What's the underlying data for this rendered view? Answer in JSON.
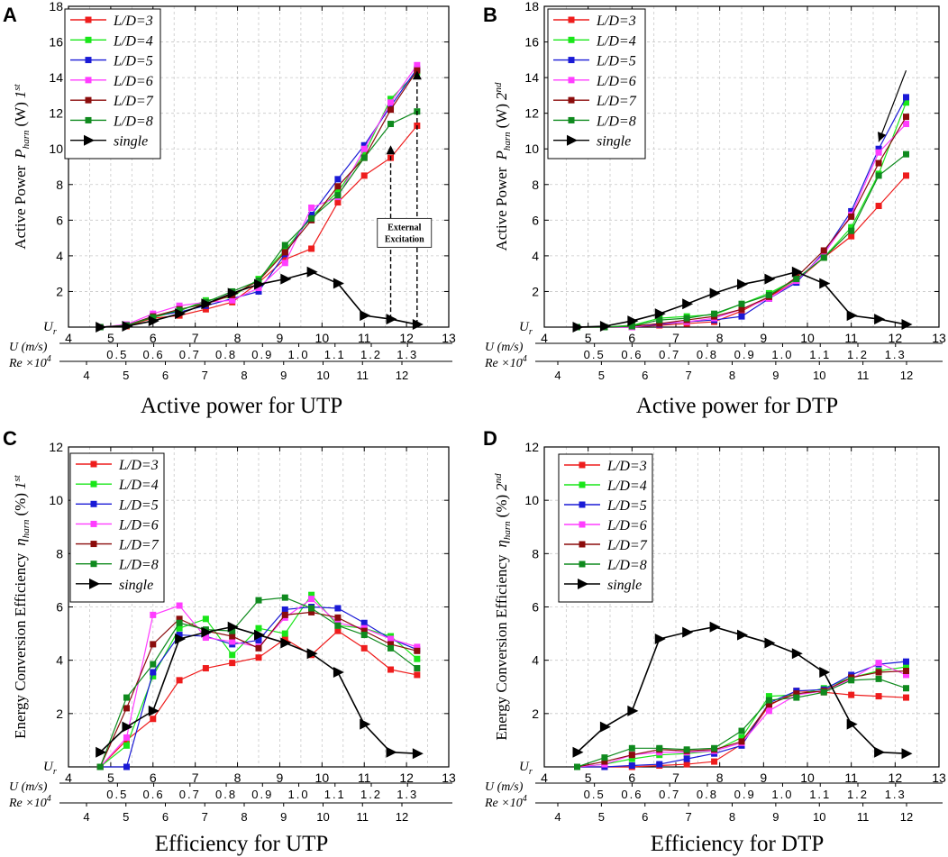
{
  "legend_prefix": "L/D=",
  "colors": {
    "ld3": "#ee1c1c",
    "ld4": "#19e619",
    "ld5": "#1a1ad6",
    "ld6": "#ff3dff",
    "ld7": "#8b0c0c",
    "ld8": "#0f8a1e",
    "single": "#000000",
    "grid": "#c8c8c8"
  },
  "annotation": {
    "line1": "External",
    "line2": "Excitation"
  },
  "chart_data": [
    {
      "panel": "A",
      "type": "line",
      "title": "Active power for UTP",
      "ylabel": "Active Power  P_harn (W) 1st",
      "ylabel_main": "Active Power",
      "ylabel_sym": "P",
      "ylabel_sub": "harn",
      "ylabel_unit": "(W)",
      "ylabel_order": "1",
      "ylabel_sup": "st",
      "ylim": [
        0,
        18
      ],
      "yticks": [
        0,
        2,
        4,
        6,
        8,
        10,
        12,
        14,
        16,
        18
      ],
      "ur_label": "U",
      "ur_sub": "r",
      "u_label": "U (m/s)",
      "u_ticks": [
        4,
        5,
        6,
        7,
        8,
        9,
        10,
        11,
        12,
        13
      ],
      "u_range": [
        4,
        13
      ],
      "re_label": "Re ×10",
      "re_sup": "4",
      "re_upper_ticks": [
        "0.5",
        "0.6",
        "0.7",
        "0.8",
        "0.9",
        "1.0",
        "1.1",
        "1.2",
        "1.3"
      ],
      "re_lower_ticks": [
        "4",
        "5",
        "6",
        "7",
        "8",
        "9",
        "10",
        "11",
        "12"
      ],
      "x": [
        4.75,
        5.375,
        6.0,
        6.625,
        7.25,
        7.875,
        8.5,
        9.125,
        9.75,
        10.375,
        11.0,
        11.625,
        12.25
      ],
      "series": [
        {
          "name": "L/D=3",
          "key": "ld3",
          "values": [
            0.0,
            0.05,
            0.5,
            0.65,
            1.0,
            1.4,
            2.5,
            3.8,
            4.4,
            7.0,
            8.5,
            9.5,
            11.3
          ]
        },
        {
          "name": "L/D=4",
          "key": "ld4",
          "values": [
            0.0,
            0.1,
            0.55,
            0.9,
            1.5,
            1.7,
            2.7,
            4.3,
            6.2,
            7.6,
            9.7,
            12.8,
            14.3
          ]
        },
        {
          "name": "L/D=5",
          "key": "ld5",
          "values": [
            0.0,
            0.1,
            0.6,
            0.85,
            1.2,
            1.6,
            2.0,
            4.1,
            6.3,
            8.3,
            10.2,
            12.4,
            14.5
          ]
        },
        {
          "name": "L/D=6",
          "key": "ld6",
          "values": [
            0.0,
            0.15,
            0.75,
            1.2,
            1.4,
            1.5,
            2.2,
            3.6,
            6.7,
            7.3,
            10.0,
            12.6,
            14.7
          ]
        },
        {
          "name": "L/D=7",
          "key": "ld7",
          "values": [
            0.0,
            0.1,
            0.6,
            1.0,
            1.3,
            1.8,
            2.6,
            4.2,
            6.0,
            7.9,
            9.5,
            12.2,
            14.4
          ]
        },
        {
          "name": "L/D=8",
          "key": "ld8",
          "values": [
            0.0,
            0.1,
            0.55,
            0.95,
            1.4,
            2.0,
            2.6,
            4.6,
            6.1,
            7.4,
            9.5,
            11.4,
            12.1
          ]
        },
        {
          "name": "single",
          "key": "single",
          "values": [
            0.0,
            0.05,
            0.35,
            0.75,
            1.3,
            1.9,
            2.4,
            2.7,
            3.1,
            2.45,
            0.65,
            0.45,
            0.15
          ]
        }
      ],
      "annotation": {
        "text": "External Excitation",
        "arrows": [
          [
            11.625,
            0.45,
            11.625,
            10.2
          ],
          [
            12.25,
            0.15,
            12.25,
            14.4
          ]
        ]
      }
    },
    {
      "panel": "B",
      "type": "line",
      "title": "Active power for DTP",
      "ylabel": "Active Power  P_harn (W) 2nd",
      "ylabel_main": "Active Power",
      "ylabel_sym": "P",
      "ylabel_sub": "harn",
      "ylabel_unit": "(W)",
      "ylabel_order": "2",
      "ylabel_sup": "nd",
      "ylim": [
        0,
        18
      ],
      "yticks": [
        0,
        2,
        4,
        6,
        8,
        10,
        12,
        14,
        16,
        18
      ],
      "ur_label": "U",
      "ur_sub": "r",
      "u_label": "U (m/s)",
      "u_ticks": [
        4,
        5,
        6,
        7,
        8,
        9,
        10,
        11,
        12,
        13
      ],
      "u_range": [
        4,
        13
      ],
      "re_label": "Re ×10",
      "re_sup": "4",
      "re_upper_ticks": [
        "0.5",
        "0.6",
        "0.7",
        "0.8",
        "0.9",
        "1.0",
        "1.1",
        "1.2",
        "1.3"
      ],
      "re_lower_ticks": [
        "4",
        "5",
        "6",
        "7",
        "8",
        "9",
        "10",
        "11",
        "12"
      ],
      "x": [
        4.75,
        5.375,
        6.0,
        6.625,
        7.25,
        7.875,
        8.5,
        9.125,
        9.75,
        10.375,
        11.0,
        11.625,
        12.25
      ],
      "series": [
        {
          "name": "L/D=3",
          "key": "ld3",
          "values": [
            0.0,
            0.0,
            0.0,
            0.1,
            0.2,
            0.3,
            0.9,
            1.7,
            2.6,
            3.9,
            5.1,
            6.8,
            8.5
          ]
        },
        {
          "name": "L/D=4",
          "key": "ld4",
          "values": [
            0.0,
            0.0,
            0.1,
            0.5,
            0.6,
            0.7,
            1.3,
            1.9,
            2.7,
            3.9,
            5.6,
            8.6,
            12.6
          ]
        },
        {
          "name": "L/D=5",
          "key": "ld5",
          "values": [
            0.0,
            0.0,
            0.0,
            0.15,
            0.3,
            0.4,
            0.6,
            1.6,
            2.5,
            4.2,
            6.5,
            10.0,
            12.9
          ]
        },
        {
          "name": "L/D=6",
          "key": "ld6",
          "values": [
            0.0,
            0.0,
            0.0,
            0.2,
            0.3,
            0.5,
            1.0,
            1.6,
            2.6,
            4.1,
            6.3,
            9.8,
            11.4
          ]
        },
        {
          "name": "L/D=7",
          "key": "ld7",
          "values": [
            0.0,
            0.0,
            0.05,
            0.2,
            0.4,
            0.6,
            1.0,
            1.7,
            2.8,
            4.3,
            6.2,
            9.2,
            11.8
          ]
        },
        {
          "name": "L/D=8",
          "key": "ld8",
          "values": [
            0.0,
            0.0,
            0.05,
            0.4,
            0.5,
            0.75,
            1.3,
            1.8,
            2.7,
            3.9,
            5.4,
            8.5,
            9.7
          ]
        },
        {
          "name": "single",
          "key": "single",
          "values": [
            0.0,
            0.05,
            0.35,
            0.75,
            1.3,
            1.9,
            2.4,
            2.7,
            3.1,
            2.45,
            0.65,
            0.45,
            0.15
          ]
        }
      ],
      "annotation_arrow": [
        11.625,
        10.4,
        12.25,
        14.4
      ]
    },
    {
      "panel": "C",
      "type": "line",
      "title": "Efficiency for UTP",
      "ylabel": "Energy Conversion Efficiency  η_harn (%) 1st",
      "ylabel_main": "Energy Conversion Efficiency",
      "ylabel_sym": "η",
      "ylabel_sub": "harn",
      "ylabel_unit": "(%)",
      "ylabel_order": "1",
      "ylabel_sup": "st",
      "ylim": [
        0,
        12
      ],
      "yticks": [
        0,
        2,
        4,
        6,
        8,
        10,
        12
      ],
      "ur_label": "U",
      "ur_sub": "r",
      "u_label": "U (m/s)",
      "u_ticks": [
        4,
        5,
        6,
        7,
        8,
        9,
        10,
        11,
        12,
        13
      ],
      "u_range": [
        4,
        13
      ],
      "re_label": "Re ×10",
      "re_sup": "4",
      "re_upper_ticks": [
        "0.5",
        "0.6",
        "0.7",
        "0.8",
        "0.9",
        "1.0",
        "1.1",
        "1.2",
        "1.3"
      ],
      "re_lower_ticks": [
        "4",
        "5",
        "6",
        "7",
        "8",
        "9",
        "10",
        "11",
        "12"
      ],
      "x": [
        4.75,
        5.375,
        6.0,
        6.625,
        7.25,
        7.875,
        8.5,
        9.125,
        9.75,
        10.375,
        11.0,
        11.625,
        12.25
      ],
      "series": [
        {
          "name": "L/D=3",
          "key": "ld3",
          "values": [
            0.0,
            1.0,
            1.8,
            3.25,
            3.7,
            3.9,
            4.1,
            4.8,
            4.2,
            5.1,
            4.45,
            3.65,
            3.45
          ]
        },
        {
          "name": "L/D=4",
          "key": "ld4",
          "values": [
            0.0,
            0.8,
            3.4,
            5.2,
            5.55,
            4.2,
            5.2,
            5.0,
            6.45,
            5.3,
            5.2,
            4.9,
            4.05
          ]
        },
        {
          "name": "L/D=5",
          "key": "ld5",
          "values": [
            0.0,
            0.0,
            3.55,
            4.95,
            4.9,
            4.6,
            4.75,
            5.9,
            6.0,
            5.95,
            5.4,
            4.8,
            4.4
          ]
        },
        {
          "name": "L/D=6",
          "key": "ld6",
          "values": [
            0.0,
            1.1,
            5.7,
            6.05,
            4.85,
            4.7,
            4.5,
            5.6,
            6.3,
            5.4,
            5.2,
            4.8,
            4.5
          ]
        },
        {
          "name": "L/D=7",
          "key": "ld7",
          "values": [
            0.0,
            2.2,
            4.6,
            5.55,
            5.1,
            4.9,
            4.45,
            5.7,
            5.8,
            5.6,
            5.1,
            4.6,
            4.35
          ]
        },
        {
          "name": "L/D=8",
          "key": "ld8",
          "values": [
            0.0,
            2.6,
            3.85,
            5.4,
            5.15,
            5.1,
            6.25,
            6.35,
            5.95,
            5.3,
            4.95,
            4.45,
            3.7
          ]
        },
        {
          "name": "single",
          "key": "single",
          "values": [
            0.55,
            1.5,
            2.1,
            4.8,
            5.05,
            5.25,
            4.95,
            4.65,
            4.25,
            3.55,
            1.6,
            0.55,
            0.5
          ]
        }
      ]
    },
    {
      "panel": "D",
      "type": "line",
      "title": "Efficiency for DTP",
      "ylabel": "Energy Conversion Efficiency  η_harn (%) 2nd",
      "ylabel_main": "Energy Conversion Efficiency",
      "ylabel_sym": "η",
      "ylabel_sub": "harn",
      "ylabel_unit": "(%)",
      "ylabel_order": "2",
      "ylabel_sup": "nd",
      "ylim": [
        0,
        12
      ],
      "yticks": [
        0,
        2,
        4,
        6,
        8,
        10,
        12
      ],
      "ur_label": "U",
      "ur_sub": "r",
      "u_label": "U (m/s)",
      "u_ticks": [
        4,
        5,
        6,
        7,
        8,
        9,
        10,
        11,
        12,
        13
      ],
      "u_range": [
        4,
        13
      ],
      "re_label": "Re ×10",
      "re_sup": "4",
      "re_upper_ticks": [
        "0.5",
        "0.6",
        "0.7",
        "0.8",
        "0.9",
        "1.0",
        "1.1",
        "1.2",
        "1.3"
      ],
      "re_lower_ticks": [
        "4",
        "5",
        "6",
        "7",
        "8",
        "9",
        "10",
        "11",
        "12"
      ],
      "x": [
        4.75,
        5.375,
        6.0,
        6.625,
        7.25,
        7.875,
        8.5,
        9.125,
        9.75,
        10.375,
        11.0,
        11.625,
        12.25
      ],
      "series": [
        {
          "name": "L/D=3",
          "key": "ld3",
          "values": [
            0.0,
            0.0,
            0.0,
            0.05,
            0.1,
            0.2,
            0.85,
            2.3,
            2.85,
            2.8,
            2.7,
            2.65,
            2.6
          ]
        },
        {
          "name": "L/D=4",
          "key": "ld4",
          "values": [
            0.0,
            0.1,
            0.3,
            0.45,
            0.5,
            0.6,
            1.1,
            2.65,
            2.7,
            2.95,
            3.35,
            3.6,
            3.75
          ]
        },
        {
          "name": "L/D=5",
          "key": "ld5",
          "values": [
            0.0,
            0.0,
            0.05,
            0.1,
            0.3,
            0.5,
            0.8,
            2.4,
            2.85,
            2.9,
            3.45,
            3.85,
            3.95
          ]
        },
        {
          "name": "L/D=6",
          "key": "ld6",
          "values": [
            0.0,
            0.1,
            0.45,
            0.55,
            0.55,
            0.6,
            0.9,
            2.1,
            2.7,
            2.85,
            3.3,
            3.9,
            3.45
          ]
        },
        {
          "name": "L/D=7",
          "key": "ld7",
          "values": [
            0.0,
            0.2,
            0.45,
            0.65,
            0.6,
            0.65,
            0.95,
            2.35,
            2.75,
            2.85,
            3.35,
            3.55,
            3.6
          ]
        },
        {
          "name": "L/D=8",
          "key": "ld8",
          "values": [
            0.0,
            0.35,
            0.7,
            0.7,
            0.65,
            0.7,
            1.35,
            2.5,
            2.6,
            2.8,
            3.25,
            3.3,
            2.95
          ]
        },
        {
          "name": "single",
          "key": "single",
          "values": [
            0.55,
            1.5,
            2.1,
            4.8,
            5.05,
            5.25,
            4.95,
            4.65,
            4.25,
            3.55,
            1.6,
            0.55,
            0.5
          ]
        }
      ]
    }
  ]
}
